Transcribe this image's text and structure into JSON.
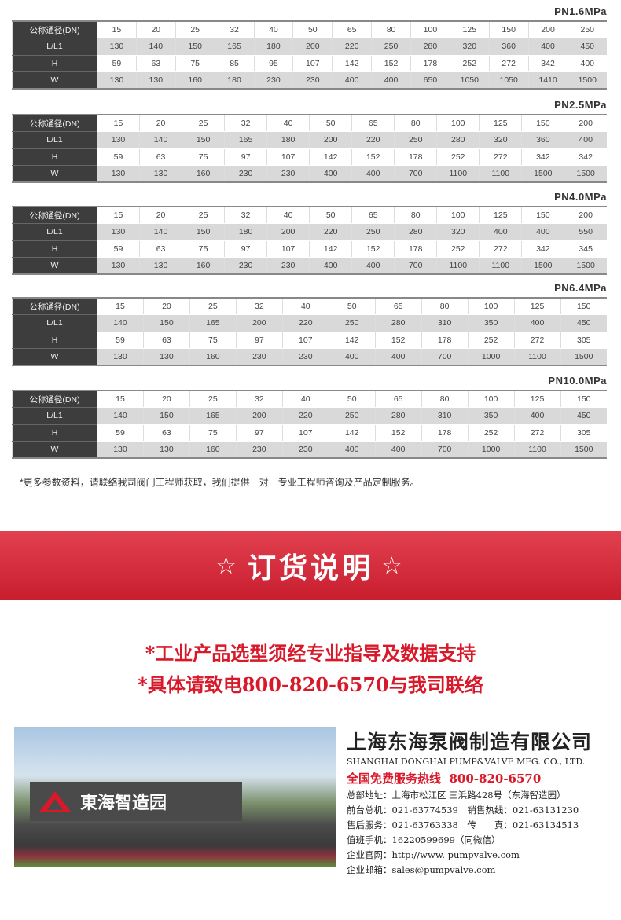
{
  "row_labels": [
    "公称通径(DN)",
    "L/L1",
    "H",
    "W"
  ],
  "tables": [
    {
      "title": "PN1.6MPa",
      "rows": [
        [
          "15",
          "20",
          "25",
          "32",
          "40",
          "50",
          "65",
          "80",
          "100",
          "125",
          "150",
          "200",
          "250"
        ],
        [
          "130",
          "140",
          "150",
          "165",
          "180",
          "200",
          "220",
          "250",
          "280",
          "320",
          "360",
          "400",
          "450"
        ],
        [
          "59",
          "63",
          "75",
          "85",
          "95",
          "107",
          "142",
          "152",
          "178",
          "252",
          "272",
          "342",
          "400"
        ],
        [
          "130",
          "130",
          "160",
          "180",
          "230",
          "230",
          "400",
          "400",
          "650",
          "1050",
          "1050",
          "1410",
          "1500"
        ]
      ]
    },
    {
      "title": "PN2.5MPa",
      "rows": [
        [
          "15",
          "20",
          "25",
          "32",
          "40",
          "50",
          "65",
          "80",
          "100",
          "125",
          "150",
          "200"
        ],
        [
          "130",
          "140",
          "150",
          "165",
          "180",
          "200",
          "220",
          "250",
          "280",
          "320",
          "360",
          "400"
        ],
        [
          "59",
          "63",
          "75",
          "97",
          "107",
          "142",
          "152",
          "178",
          "252",
          "272",
          "342",
          "342"
        ],
        [
          "130",
          "130",
          "160",
          "230",
          "230",
          "400",
          "400",
          "700",
          "1100",
          "1100",
          "1500",
          "1500"
        ]
      ]
    },
    {
      "title": "PN4.0MPa",
      "rows": [
        [
          "15",
          "20",
          "25",
          "32",
          "40",
          "50",
          "65",
          "80",
          "100",
          "125",
          "150",
          "200"
        ],
        [
          "130",
          "140",
          "150",
          "180",
          "200",
          "220",
          "250",
          "280",
          "320",
          "400",
          "400",
          "550"
        ],
        [
          "59",
          "63",
          "75",
          "97",
          "107",
          "142",
          "152",
          "178",
          "252",
          "272",
          "342",
          "345"
        ],
        [
          "130",
          "130",
          "160",
          "230",
          "230",
          "400",
          "400",
          "700",
          "1100",
          "1100",
          "1500",
          "1500"
        ]
      ]
    },
    {
      "title": "PN6.4MPa",
      "rows": [
        [
          "15",
          "20",
          "25",
          "32",
          "40",
          "50",
          "65",
          "80",
          "100",
          "125",
          "150"
        ],
        [
          "140",
          "150",
          "165",
          "200",
          "220",
          "250",
          "280",
          "310",
          "350",
          "400",
          "450"
        ],
        [
          "59",
          "63",
          "75",
          "97",
          "107",
          "142",
          "152",
          "178",
          "252",
          "272",
          "305"
        ],
        [
          "130",
          "130",
          "160",
          "230",
          "230",
          "400",
          "400",
          "700",
          "1000",
          "1100",
          "1500"
        ]
      ]
    },
    {
      "title": "PN10.0MPa",
      "rows": [
        [
          "15",
          "20",
          "25",
          "32",
          "40",
          "50",
          "65",
          "80",
          "100",
          "125",
          "150"
        ],
        [
          "140",
          "150",
          "165",
          "200",
          "220",
          "250",
          "280",
          "310",
          "350",
          "400",
          "450"
        ],
        [
          "59",
          "63",
          "75",
          "97",
          "107",
          "142",
          "152",
          "178",
          "252",
          "272",
          "305"
        ],
        [
          "130",
          "130",
          "160",
          "230",
          "230",
          "400",
          "400",
          "700",
          "1000",
          "1100",
          "1500"
        ]
      ]
    }
  ],
  "note": "*更多参数资料，请联络我司阀门工程师获取，我们提供一对一专业工程师咨询及产品定制服务。",
  "banner": {
    "title": "订货说明",
    "star": "☆"
  },
  "slogans": [
    "*工业产品选型须经专业指导及数据支持",
    "*具体请致电800-820-6570与我司联络"
  ],
  "photo": {
    "sign_text": "東海智造园"
  },
  "company": {
    "name_cn": "上海东海泵阀制造有限公司",
    "name_en": "SHANGHAI DONGHAI PUMP&VALVE MFG. CO., LTD.",
    "hotline_label": "全国免费服务热线",
    "hotline": "800-820-6570",
    "lines": [
      "总部地址：上海市松江区 三浜路428号（东海智造园）",
      "前台总机：021-63774539　销售热线：021-63131230",
      "售后服务：021-63763338　传　　真：021-63134513",
      "值班手机：16220599699（同微信）",
      "企业官网：http://www. pumpvalve.com",
      "企业邮箱：sales@pumpvalve.com"
    ]
  },
  "colors": {
    "accent": "#d7192a",
    "label_bg": "#3d3d3d",
    "stripe": "#d9d9d9"
  }
}
